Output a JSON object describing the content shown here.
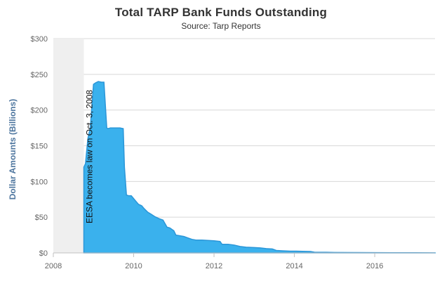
{
  "chart_data": {
    "type": "area",
    "title": "Total TARP Bank Funds Outstanding",
    "subtitle": "Source: Tarp Reports",
    "xlabel": "",
    "ylabel": "Dollar Amounts (Billions)",
    "xlim": [
      2008.0,
      2017.5
    ],
    "ylim": [
      0,
      300
    ],
    "x_tick_values": [
      2008,
      2010,
      2012,
      2014,
      2016
    ],
    "x_tick_labels": [
      "2008",
      "2010",
      "2012",
      "2014",
      "2016"
    ],
    "y_tick_values": [
      0,
      50,
      100,
      150,
      200,
      250,
      300
    ],
    "y_tick_labels": [
      "$0",
      "$50",
      "$100",
      "$150",
      "$200",
      "$250",
      "$300"
    ],
    "grid": true,
    "shaded_region": {
      "x_start": 2008.0,
      "x_end": 2008.76
    },
    "annotation": {
      "text": "EESA becomes law on Oct. 3, 2008",
      "x": 2008.76
    },
    "colors": {
      "area_fill": "#3ab1ed",
      "area_stroke": "#2b96d8",
      "shaded_region": "#efefef",
      "grid": "#d8d8d8",
      "title": "#333333",
      "y_axis_title": "#4d759e"
    },
    "series": [
      {
        "x": [
          2008.76,
          2008.8,
          2008.86,
          2008.92,
          2009.0,
          2009.05,
          2009.12,
          2009.2,
          2009.26,
          2009.33,
          2009.36,
          2009.42,
          2009.5,
          2009.58,
          2009.66,
          2009.74,
          2009.77,
          2009.82,
          2009.88,
          2009.94,
          2010.0,
          2010.06,
          2010.12,
          2010.2,
          2010.26,
          2010.35,
          2010.44,
          2010.52,
          2010.63,
          2010.73,
          2010.83,
          2010.9,
          2011.0,
          2011.05,
          2011.15,
          2011.25,
          2011.35,
          2011.45,
          2011.55,
          2011.7,
          2011.85,
          2012.0,
          2012.15,
          2012.2,
          2012.35,
          2012.5,
          2012.65,
          2012.8,
          2013.0,
          2013.15,
          2013.3,
          2013.45,
          2013.55,
          2013.7,
          2013.9,
          2014.05,
          2014.2,
          2014.4,
          2014.5,
          2014.8,
          2015.0,
          2015.5,
          2016.0,
          2016.5,
          2017.0,
          2017.5
        ],
        "y": [
          120,
          125,
          160,
          175,
          236,
          238,
          240,
          239,
          239,
          175,
          174,
          175,
          175,
          175,
          175,
          174,
          120,
          81,
          80,
          80,
          76,
          72,
          68,
          66,
          62,
          57,
          54,
          51,
          48,
          46,
          36,
          35,
          31,
          25,
          24,
          23,
          21,
          19,
          18,
          18,
          17.5,
          17,
          16,
          12,
          12,
          11,
          9,
          8,
          7.5,
          7,
          6,
          5.5,
          3.5,
          3,
          2.5,
          2.5,
          2.2,
          2,
          1,
          0.8,
          0.6,
          0.5,
          0.4,
          0.3,
          0.2,
          0.1
        ]
      }
    ]
  }
}
